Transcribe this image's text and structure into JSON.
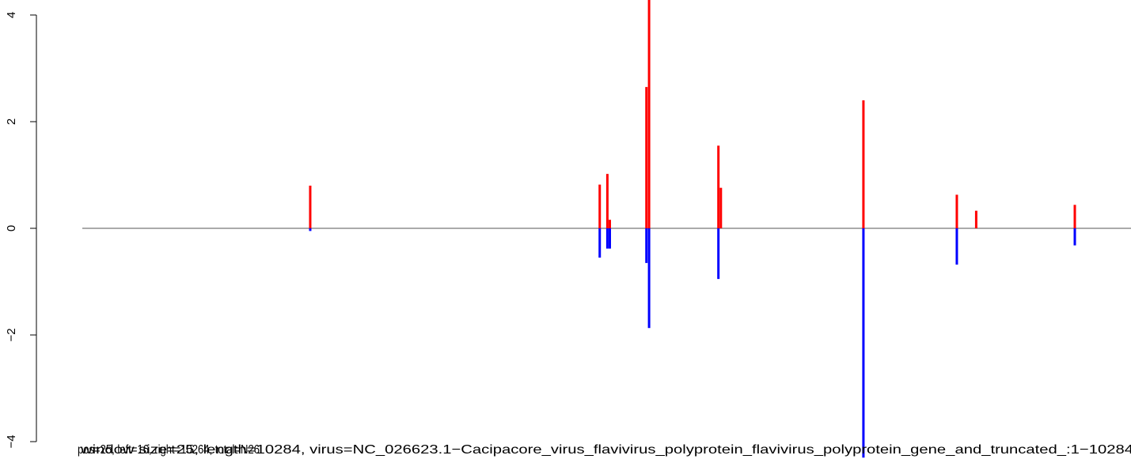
{
  "chart_data": {
    "type": "bar",
    "title": "",
    "xlabel": "",
    "ylabel": "",
    "ylim": [
      -4,
      4
    ],
    "xlim": [
      0,
      10284
    ],
    "yticks": [
      "4",
      "2",
      "0",
      "−2",
      "−4"
    ],
    "yticks_values": [
      4,
      2,
      0,
      -2,
      -4
    ],
    "grid": false,
    "legend": "none",
    "overlap_labels": [
      "window size=25, length=10284, virus=NC_026623.1−Cacipacore_virus_flavivirus_polyprotein_flavivirus_polyprotein_gene_and_truncated_:1−10284",
      "pos=25, left=16, right=10264, total=N26"
    ],
    "colors": {
      "positive": "#ff0000",
      "negative": "#0000ff",
      "baseline": "#555555",
      "axis": "#000000"
    },
    "series": [
      {
        "values": [
          {
            "x": 2235,
            "y": 0.8
          },
          {
            "x": 5074,
            "y": 0.82
          },
          {
            "x": 5149,
            "y": 1.02
          },
          {
            "x": 5173,
            "y": 0.16
          },
          {
            "x": 5532,
            "y": 2.65
          },
          {
            "x": 5558,
            "y": 4.3
          },
          {
            "x": 6238,
            "y": 1.55
          },
          {
            "x": 6262,
            "y": 0.76
          },
          {
            "x": 7660,
            "y": 2.4
          },
          {
            "x": 8576,
            "y": 0.63
          },
          {
            "x": 8766,
            "y": 0.33
          },
          {
            "x": 9733,
            "y": 0.44
          }
        ]
      },
      {
        "values": [
          {
            "x": 2235,
            "y": -0.05
          },
          {
            "x": 5074,
            "y": -0.55
          },
          {
            "x": 5149,
            "y": -0.38
          },
          {
            "x": 5173,
            "y": -0.38
          },
          {
            "x": 5532,
            "y": -0.65
          },
          {
            "x": 5558,
            "y": -1.87
          },
          {
            "x": 6238,
            "y": -0.95
          },
          {
            "x": 7660,
            "y": -4.3
          },
          {
            "x": 8576,
            "y": -0.68
          },
          {
            "x": 9733,
            "y": -0.32
          }
        ]
      }
    ]
  }
}
